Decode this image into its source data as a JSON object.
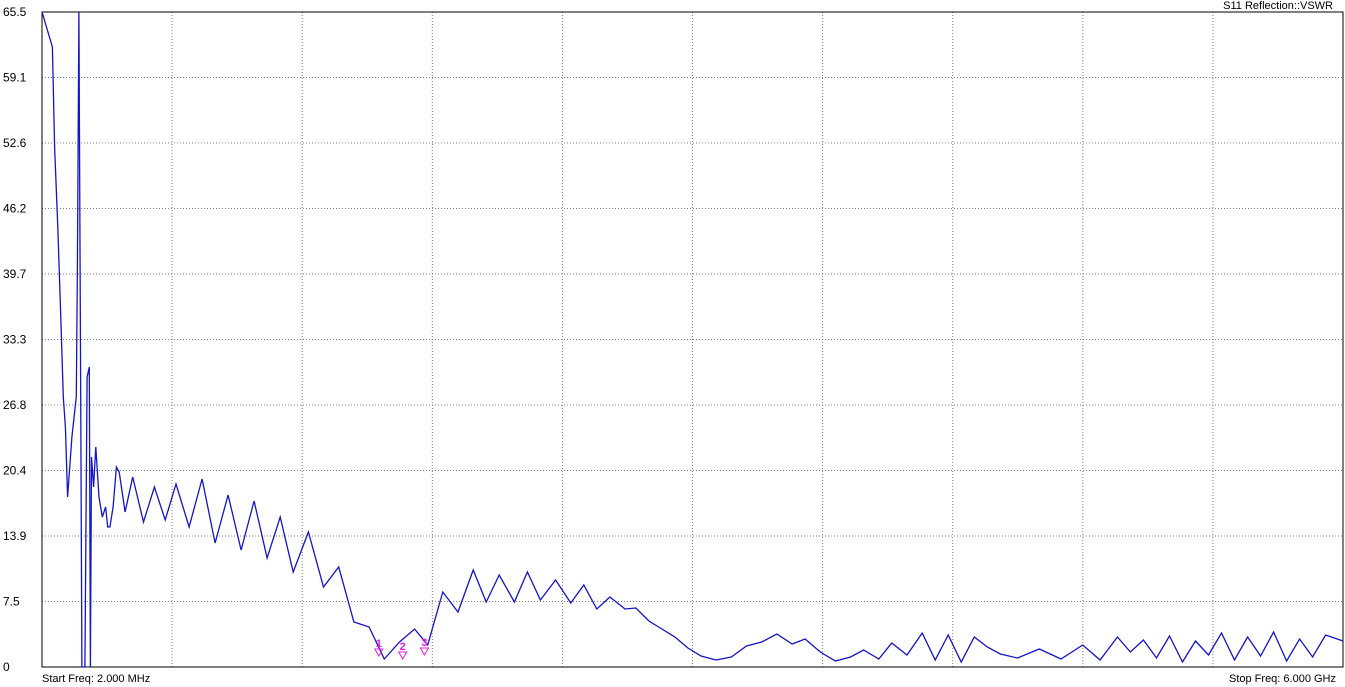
{
  "chart_data": {
    "type": "line",
    "title": "S11 Reflection::VSWR",
    "footer_left": "Start Freq: 2.000 MHz",
    "footer_right": "Stop Freq: 6.000 GHz",
    "x_unit": "GHz",
    "xlim": [
      0.002,
      6.0
    ],
    "ylim": [
      0,
      65.5
    ],
    "y_ticks": [
      "65.5",
      "59.1",
      "52.6",
      "46.2",
      "39.7",
      "33.3",
      "26.8",
      "20.4",
      "13.9",
      "7.5",
      "0"
    ],
    "x_gridlines": 10,
    "grid": true,
    "colors": {
      "trace": "#1414c8",
      "marker": "#e020e0",
      "grid": "#808080"
    },
    "series": [
      {
        "x": [
          0.002,
          0.05,
          0.06,
          0.075,
          0.09,
          0.1,
          0.11,
          0.12,
          0.14,
          0.16,
          0.165,
          0.172,
          0.181,
          0.186,
          0.19,
          0.194,
          0.2,
          0.21,
          0.22,
          0.225,
          0.23,
          0.24,
          0.25,
          0.265,
          0.28,
          0.295,
          0.305,
          0.315,
          0.33,
          0.345,
          0.358,
          0.385,
          0.42,
          0.47,
          0.52,
          0.57,
          0.62,
          0.68,
          0.74,
          0.8,
          0.86,
          0.92,
          0.98,
          1.04,
          1.1,
          1.16,
          1.23,
          1.3,
          1.37,
          1.44,
          1.51,
          1.58,
          1.65,
          1.72,
          1.78,
          1.85,
          1.92,
          1.99,
          2.05,
          2.11,
          2.18,
          2.24,
          2.3,
          2.37,
          2.44,
          2.5,
          2.56,
          2.62,
          2.69,
          2.74,
          2.8,
          2.86,
          2.92,
          2.98,
          3.04,
          3.11,
          3.18,
          3.25,
          3.32,
          3.39,
          3.46,
          3.52,
          3.59,
          3.66,
          3.73,
          3.79,
          3.86,
          3.92,
          3.99,
          4.06,
          4.12,
          4.18,
          4.24,
          4.3,
          4.36,
          4.42,
          4.5,
          4.6,
          4.7,
          4.8,
          4.88,
          4.96,
          5.02,
          5.08,
          5.14,
          5.2,
          5.26,
          5.32,
          5.38,
          5.44,
          5.5,
          5.56,
          5.62,
          5.68,
          5.74,
          5.8,
          5.86,
          5.92,
          6.0
        ],
        "values": [
          65.5,
          62.0,
          52.0,
          44.0,
          34.0,
          27.0,
          24.0,
          17.0,
          23.0,
          27.0,
          40.0,
          65.5,
          25.0,
          0,
          0,
          0,
          0,
          29.0,
          30.0,
          0,
          21.0,
          18.0,
          22.0,
          17.0,
          15.0,
          16.0,
          14.0,
          14.0,
          16.0,
          20.0,
          19.5,
          15.5,
          19.0,
          14.5,
          18.0,
          14.7,
          18.3,
          14.0,
          18.8,
          12.4,
          17.2,
          11.7,
          16.6,
          10.9,
          15.0,
          9.5,
          13.5,
          8.0,
          10.0,
          4.5,
          4.0,
          0.8,
          2.5,
          3.8,
          2.2,
          7.5,
          5.5,
          9.7,
          6.5,
          9.2,
          6.5,
          9.5,
          6.7,
          8.7,
          6.4,
          8.2,
          5.8,
          7.0,
          5.8,
          5.9,
          4.6,
          3.8,
          3.0,
          1.9,
          1.1,
          0.7,
          1.0,
          2.1,
          2.5,
          3.3,
          2.3,
          2.8,
          1.5,
          0.6,
          1.0,
          1.7,
          0.8,
          2.4,
          1.2,
          3.4,
          0.7,
          3.2,
          0.5,
          3.0,
          2.0,
          1.3,
          0.9,
          1.8,
          0.8,
          2.2,
          0.7,
          3.0,
          1.5,
          2.7,
          0.9,
          3.1,
          0.5,
          2.6,
          1.2,
          3.4,
          0.7,
          3.0,
          1.1,
          3.5,
          0.6,
          2.8,
          1.0,
          3.2,
          2.6
        ]
      }
    ],
    "markers": [
      {
        "label": "1",
        "x": 1.555,
        "value": 1.2
      },
      {
        "label": "2",
        "x": 1.665,
        "value": 0.9
      },
      {
        "label": "3",
        "x": 1.765,
        "value": 1.3
      }
    ]
  }
}
